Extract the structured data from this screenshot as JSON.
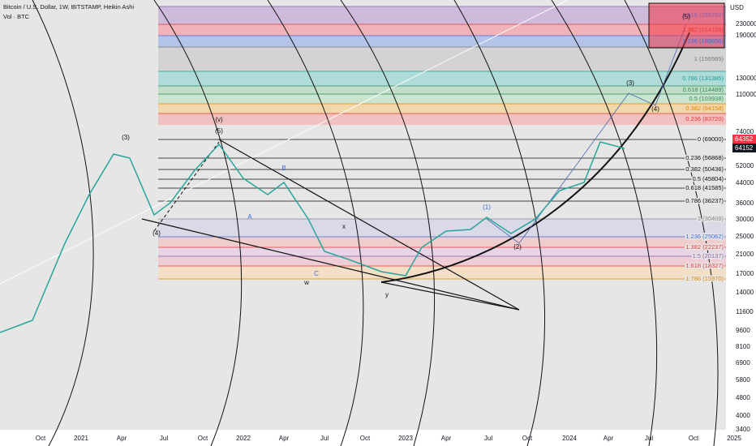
{
  "header": {
    "title": "Bitcoin / U.S. Dollar, 1W, BITSTAMP, Heikin Ashi",
    "volume": "Vol · BTC"
  },
  "price_axis": {
    "unit": "USD",
    "labels": [
      "230000",
      "190000",
      "130000",
      "110000",
      "74000",
      "52000",
      "44000",
      "36000",
      "30000",
      "25000",
      "21000",
      "17000",
      "14000",
      "11600",
      "9600",
      "8100",
      "6900",
      "5800",
      "4800",
      "4000",
      "3400"
    ],
    "last_price": "64352",
    "last_close": "64152"
  },
  "time_axis": [
    "Oct",
    "2021",
    "Apr",
    "Jul",
    "Oct",
    "2022",
    "Apr",
    "Jul",
    "Oct",
    "2023",
    "Apr",
    "Jul",
    "Oct",
    "2024",
    "Apr",
    "Jul",
    "Oct",
    "2025"
  ],
  "fib_extension": [
    "1.618 (259782)",
    "1.382 (214106)",
    "1.236 (189956)",
    "1 (156565)",
    "0.786 (131385)",
    "0.618 (114489)",
    "0.5 (103938)",
    "0.382 (94158)",
    "0.236 (83720)"
  ],
  "fib_retracement": [
    "0 (69000)",
    "0.236 (56868)",
    "0.382 (50436)",
    "0.5 (45804)",
    "0.618 (41585)",
    "0.786 (36237)",
    "1 (30409)",
    "1.236 (25062)",
    "1.382 (22237)",
    "1.5 (20137)",
    "1.618 (18327)",
    "1.786 (15970)"
  ],
  "wave_labels": [
    "(3)",
    "(4)",
    "(v)",
    "(5)",
    "A",
    "B",
    "C",
    "w",
    "x",
    "y",
    "(1)",
    "(2)",
    "(3)",
    "(4)",
    "(5)"
  ]
}
